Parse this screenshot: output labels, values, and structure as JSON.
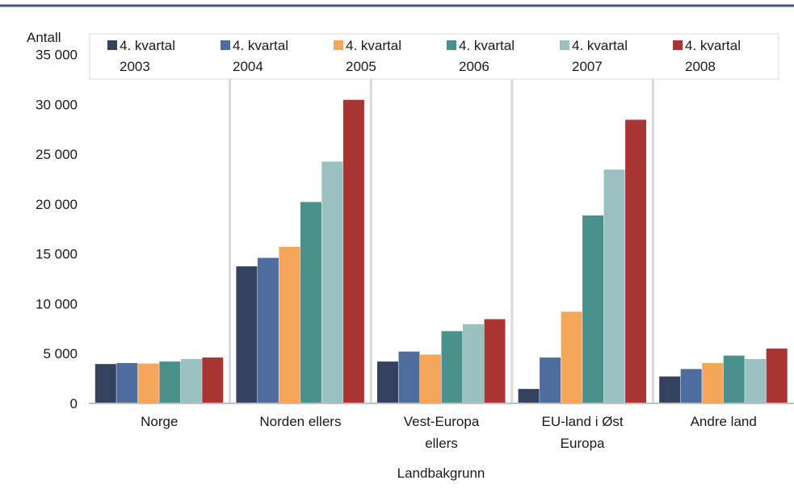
{
  "colors": {
    "frame_line": "#3c5a8a",
    "grid": "#d9d9d9",
    "series": [
      "#34425f",
      "#4f6c9f",
      "#f5a65b",
      "#4a918c",
      "#9bc0c1",
      "#a83434"
    ]
  },
  "chart_data": {
    "type": "bar",
    "ylabel": "Antall",
    "xlabel": "Landbakgrunn",
    "ylim": [
      0,
      35000
    ],
    "yticks": [
      "0",
      "5 000",
      "10 000",
      "15 000",
      "20 000",
      "25 000",
      "30 000",
      "35 000"
    ],
    "ytick_values": [
      0,
      5000,
      10000,
      15000,
      20000,
      25000,
      30000,
      35000
    ],
    "grid": "vertical category separators",
    "legend_position": "top",
    "categories": [
      {
        "line1": "Norge",
        "line2": ""
      },
      {
        "line1": "Norden ellers",
        "line2": ""
      },
      {
        "line1": "Vest-Europa",
        "line2": "ellers"
      },
      {
        "line1": "EU-land i Øst",
        "line2": "Europa"
      },
      {
        "line1": "Andre land",
        "line2": ""
      }
    ],
    "series": [
      {
        "line1": "4. kvartal",
        "line2": "2003",
        "values": [
          3950,
          13750,
          4200,
          1450,
          2700
        ]
      },
      {
        "line1": "4. kvartal",
        "line2": "2004",
        "values": [
          4050,
          14600,
          5200,
          4600,
          3450
        ]
      },
      {
        "line1": "4. kvartal",
        "line2": "2005",
        "values": [
          4000,
          15700,
          4900,
          9200,
          4050
        ]
      },
      {
        "line1": "4. kvartal",
        "line2": "2006",
        "values": [
          4200,
          20200,
          7250,
          18850,
          4800
        ]
      },
      {
        "line1": "4. kvartal",
        "line2": "2007",
        "values": [
          4450,
          24250,
          7950,
          23450,
          4450
        ]
      },
      {
        "line1": "4. kvartal",
        "line2": "2008",
        "values": [
          4600,
          30450,
          8450,
          28450,
          5500
        ]
      }
    ]
  }
}
